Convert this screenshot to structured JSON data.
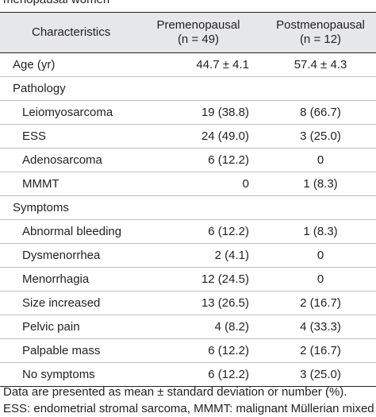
{
  "caption_top": "menopausal women",
  "header": {
    "col1": "Characteristics",
    "col2_line1": "Premenopausal",
    "col2_line2": "(n = 49)",
    "col3_line1": "Postmenopausal",
    "col3_line2": "(n = 12)"
  },
  "rows": [
    {
      "label": "Age (yr)",
      "pre": "44.7 ± 4.1",
      "post": "57.4 ± 4.3"
    },
    {
      "label": "Pathology",
      "pre": "",
      "post": ""
    },
    {
      "label": "Leiomyosarcoma",
      "pre": "19 (38.8)",
      "post": "8 (66.7)"
    },
    {
      "label": "ESS",
      "pre": "24 (49.0)",
      "post": "3 (25.0)"
    },
    {
      "label": "Adenosarcoma",
      "pre": "6 (12.2)",
      "post": "0"
    },
    {
      "label": "MMMT",
      "pre": "0",
      "post": "1 (8.3)"
    },
    {
      "label": "Symptoms",
      "pre": "",
      "post": ""
    },
    {
      "label": "Abnormal bleeding",
      "pre": "6 (12.2)",
      "post": "1 (8.3)"
    },
    {
      "label": "Dysmenorrhea",
      "pre": "2 (4.1)",
      "post": "0"
    },
    {
      "label": "Menorrhagia",
      "pre": "12 (24.5)",
      "post": "0"
    },
    {
      "label": "Size increased",
      "pre": "13 (26.5)",
      "post": "2 (16.7)"
    },
    {
      "label": "Pelvic pain",
      "pre": "4 (8.2)",
      "post": "4 (33.3)"
    },
    {
      "label": "Palpable mass",
      "pre": "6 (12.2)",
      "post": "2 (16.7)"
    },
    {
      "label": "No symptoms",
      "pre": "6 (12.2)",
      "post": "3 (25.0)"
    }
  ],
  "notes": {
    "line1": "Data are presented as mean ± standard deviation or number (%).",
    "line2": "ESS: endometrial stromal sarcoma, MMMT: malignant Müllerian mixed tu-"
  }
}
